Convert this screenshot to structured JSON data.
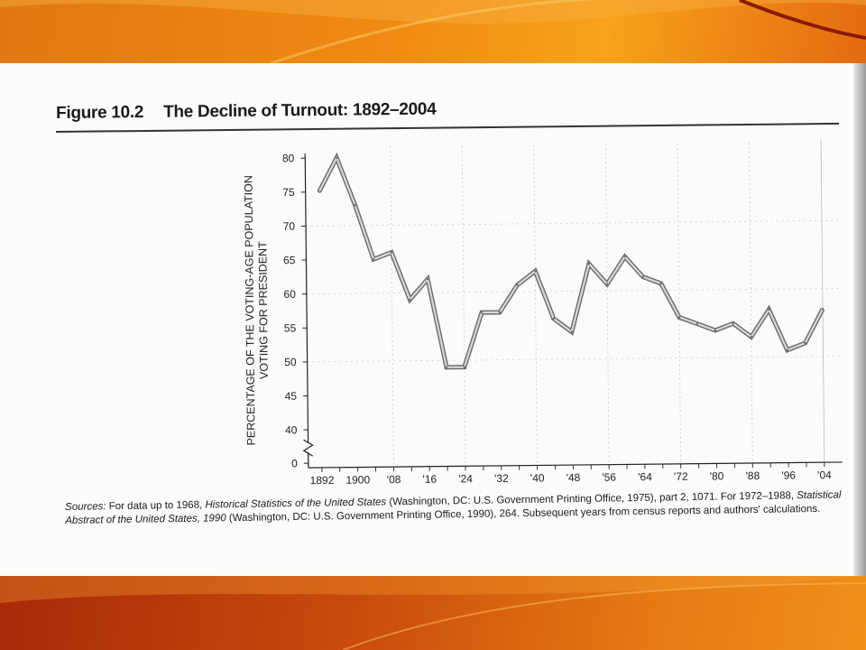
{
  "figure": {
    "label": "Figure 10.2",
    "title": "The Decline of Turnout: 1892–2004"
  },
  "sources_note": "Sources: For data up to 1968, Historical Statistics of the United States (Washington, DC: U.S. Government Printing Office, 1975), part 2, 1071. For 1972–1988, Statistical Abstract of the United States, 1990 (Washington, DC: U.S. Government Printing Office, 1990), 264. Subsequent years from census reports and authors' calculations.",
  "colors": {
    "line_outer": "#6a6a6a",
    "line_inner": "#d8d8d8",
    "text": "#1a1a1a"
  },
  "chart_data": {
    "type": "line",
    "title": "The Decline of Turnout: 1892–2004",
    "xlabel": "",
    "ylabel": "PERCENTAGE OF THE VOTING-AGE POPULATION VOTING FOR PRESIDENT",
    "ylabel_lines": [
      "PERCENTAGE OF THE VOTING-AGE POPULATION",
      "VOTING FOR PRESIDENT"
    ],
    "x": [
      1892,
      1896,
      1900,
      1904,
      1908,
      1912,
      1916,
      1920,
      1924,
      1928,
      1932,
      1936,
      1940,
      1944,
      1948,
      1952,
      1956,
      1960,
      1964,
      1968,
      1972,
      1976,
      1980,
      1984,
      1988,
      1992,
      1996,
      2000,
      2004
    ],
    "series": [
      {
        "values": [
          75,
          80,
          73,
          65,
          66,
          59,
          62,
          49,
          49,
          57,
          57,
          61,
          63,
          56,
          54,
          64,
          61,
          65,
          62,
          61,
          56,
          55,
          54,
          55,
          53,
          57,
          51,
          52,
          57
        ]
      }
    ],
    "x_ticks": [
      "1892",
      "1900",
      "'08",
      "'16",
      "'24",
      "'32",
      "'40",
      "'48",
      "'56",
      "'64",
      "'72",
      "'80",
      "'88",
      "'96",
      "'04"
    ],
    "x_tick_years": [
      1892,
      1900,
      1908,
      1916,
      1924,
      1932,
      1940,
      1948,
      1956,
      1964,
      1972,
      1980,
      1988,
      1996,
      2004
    ],
    "y_ticks": [
      "0",
      "40",
      "45",
      "50",
      "55",
      "60",
      "65",
      "70",
      "75",
      "80"
    ],
    "y_tick_values": [
      0,
      40,
      45,
      50,
      55,
      60,
      65,
      70,
      75,
      80
    ],
    "ylim": [
      40,
      80
    ],
    "y_axis_break": true,
    "grid": true,
    "legend": "none"
  }
}
